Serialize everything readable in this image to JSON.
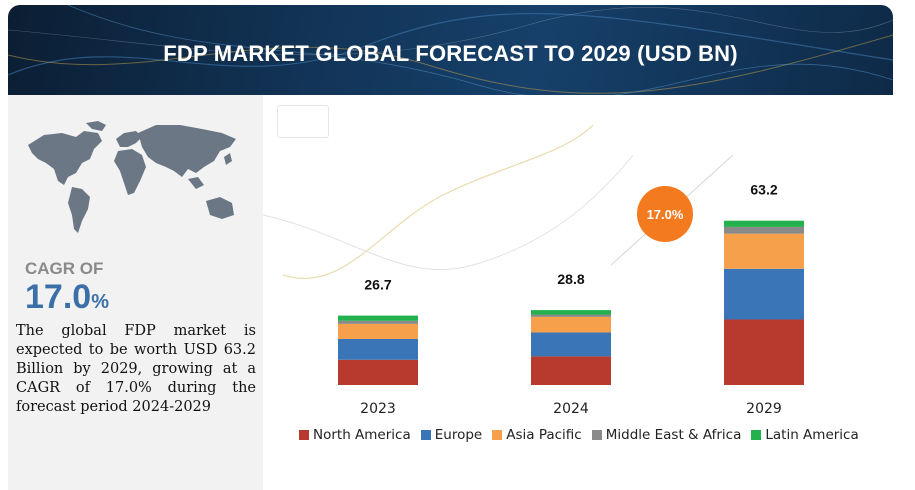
{
  "header": {
    "title": "FDP MARKET GLOBAL FORECAST TO 2029 (USD BN)"
  },
  "left_panel": {
    "cagr_label": "CAGR OF",
    "cagr_value": "17.0",
    "cagr_unit": "%",
    "description": "The global FDP market is expected to be worth USD 63.2 Billion by 2029, growing at a CAGR of 17.0% during the forecast period 2024-2029"
  },
  "chart_data": {
    "type": "bar",
    "stacked": true,
    "categories": [
      "2023",
      "2024",
      "2029"
    ],
    "totals": [
      "26.7",
      "28.8",
      "63.2"
    ],
    "series": [
      {
        "name": "North America",
        "color": "#b83a2f",
        "values": [
          9.7,
          11.0,
          25.2
        ]
      },
      {
        "name": "Europe",
        "color": "#3a75b8",
        "values": [
          8.0,
          9.2,
          19.5
        ]
      },
      {
        "name": "Asia Pacific",
        "color": "#f7a04b",
        "values": [
          5.8,
          6.0,
          13.5
        ]
      },
      {
        "name": "Middle East & Africa",
        "color": "#8a8a8a",
        "values": [
          1.2,
          0.9,
          2.6
        ]
      },
      {
        "name": "Latin America",
        "color": "#22b14c",
        "values": [
          2.0,
          1.7,
          2.4
        ]
      }
    ],
    "annotation": {
      "text": "17.0%",
      "color": "#f37a1f"
    },
    "legend_position": "bottom",
    "grid": false
  }
}
